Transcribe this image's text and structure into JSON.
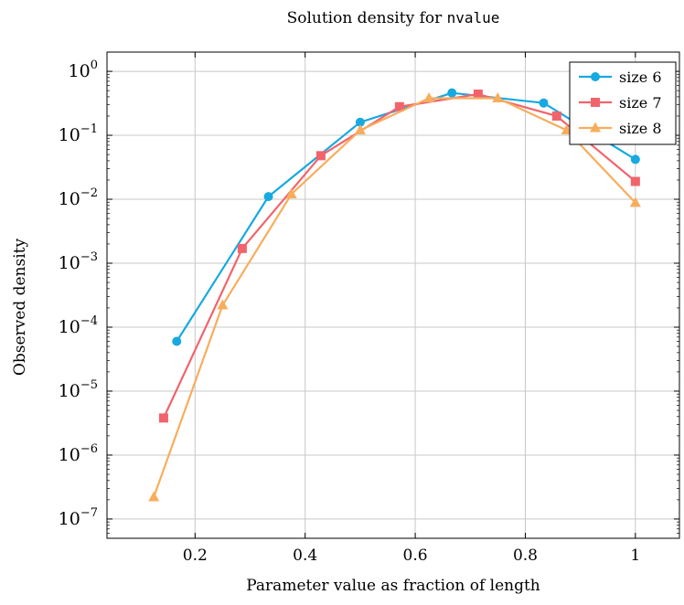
{
  "chart_data": {
    "type": "line",
    "title_text": "Solution density for ",
    "title_code": "nvalue",
    "xlabel": "Parameter value as fraction of length",
    "ylabel": "Observed density",
    "xscale": "linear",
    "yscale": "log",
    "xlim": [
      0.04,
      1.08
    ],
    "ylim": [
      5e-08,
      2
    ],
    "grid": true,
    "legend_position": "top-right",
    "x_ticks": [
      {
        "value": 0.2,
        "label": "0.2"
      },
      {
        "value": 0.4,
        "label": "0.4"
      },
      {
        "value": 0.6,
        "label": "0.6"
      },
      {
        "value": 0.8,
        "label": "0.8"
      },
      {
        "value": 1.0,
        "label": "1"
      }
    ],
    "y_ticks": [
      {
        "value": 1,
        "base": "10",
        "exp": "0"
      },
      {
        "value": 0.1,
        "base": "10",
        "exp": "−1"
      },
      {
        "value": 0.01,
        "base": "10",
        "exp": "−2"
      },
      {
        "value": 0.001,
        "base": "10",
        "exp": "−3"
      },
      {
        "value": 0.0001,
        "base": "10",
        "exp": "−4"
      },
      {
        "value": 1e-05,
        "base": "10",
        "exp": "−5"
      },
      {
        "value": 1e-06,
        "base": "10",
        "exp": "−6"
      },
      {
        "value": 1e-07,
        "base": "10",
        "exp": "−7"
      }
    ],
    "series": [
      {
        "name": "size 6",
        "color": "#17a9e0",
        "marker": "circle",
        "x": [
          0.1667,
          0.3333,
          0.5,
          0.6667,
          0.8333,
          1.0
        ],
        "y": [
          6e-05,
          0.011,
          0.16,
          0.46,
          0.32,
          0.042
        ]
      },
      {
        "name": "size 7",
        "color": "#f2646c",
        "marker": "square",
        "x": [
          0.1429,
          0.2857,
          0.4286,
          0.5714,
          0.7143,
          0.8571,
          1.0
        ],
        "y": [
          3.8e-06,
          0.0017,
          0.048,
          0.28,
          0.44,
          0.2,
          0.019
        ]
      },
      {
        "name": "size 8",
        "color": "#f8ad5c",
        "marker": "triangle",
        "x": [
          0.125,
          0.25,
          0.375,
          0.5,
          0.625,
          0.75,
          0.875,
          1.0
        ],
        "y": [
          2.2e-07,
          0.00022,
          0.012,
          0.12,
          0.38,
          0.38,
          0.12,
          0.0088
        ]
      }
    ]
  }
}
